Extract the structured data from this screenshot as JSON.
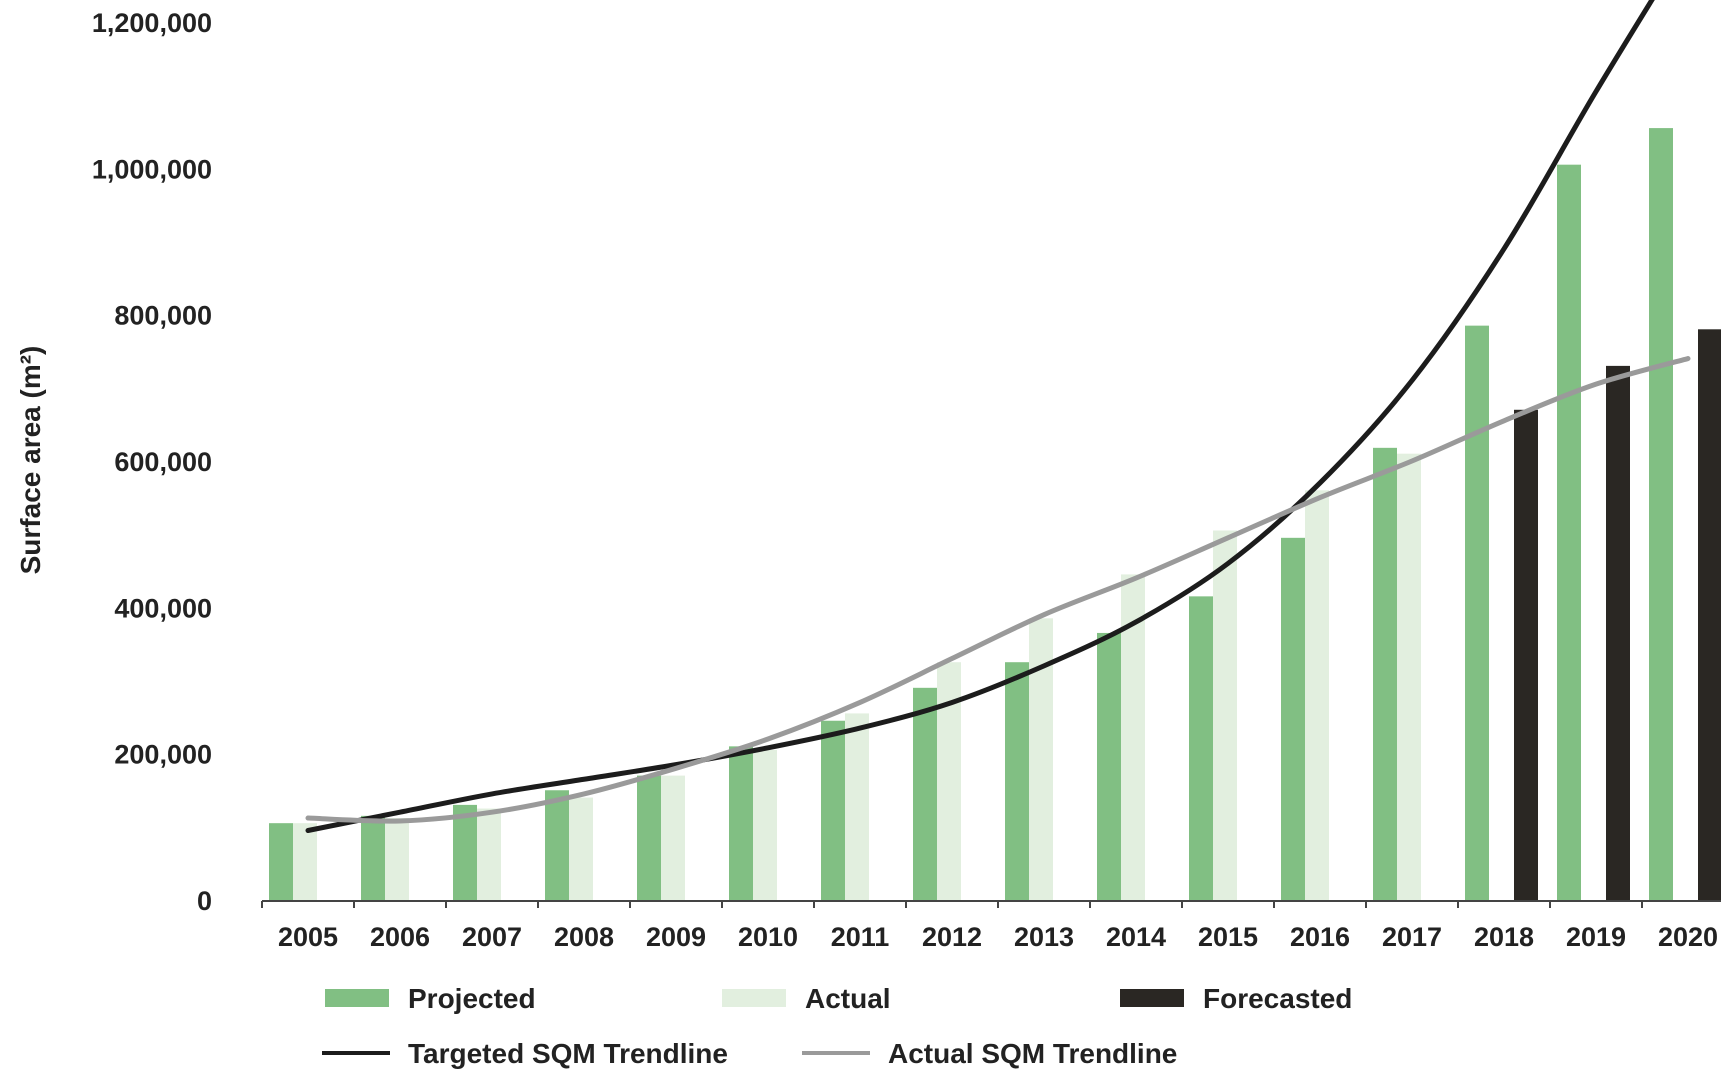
{
  "chart_data": {
    "type": "bar",
    "categories": [
      "2005",
      "2006",
      "2007",
      "2008",
      "2009",
      "2010",
      "2011",
      "2012",
      "2013",
      "2014",
      "2015",
      "2016",
      "2017",
      "2018",
      "2019",
      "2020"
    ],
    "series": [
      {
        "name": "Projected",
        "kind": "bar",
        "color": "#81bf83",
        "values": [
          105000,
          115000,
          130000,
          150000,
          170000,
          210000,
          245000,
          290000,
          325000,
          365000,
          415000,
          495000,
          618000,
          785000,
          1005000,
          1055000
        ]
      },
      {
        "name": "Actual",
        "kind": "bar",
        "color": "#e2efdf",
        "values": [
          105000,
          112000,
          125000,
          140000,
          170000,
          205000,
          255000,
          325000,
          385000,
          445000,
          505000,
          560000,
          610000,
          null,
          null,
          null
        ]
      },
      {
        "name": "Forecasted",
        "kind": "bar",
        "color": "#2a2723",
        "values": [
          null,
          null,
          null,
          null,
          null,
          null,
          null,
          null,
          null,
          null,
          null,
          null,
          null,
          670000,
          730000,
          780000
        ]
      },
      {
        "name": "Targeted SQM Trendline",
        "kind": "line",
        "color": "#1c1c1c",
        "values": [
          95000,
          120000,
          145000,
          165000,
          185000,
          208000,
          235000,
          270000,
          320000,
          380000,
          460000,
          570000,
          710000,
          890000,
          1105000,
          1310000
        ]
      },
      {
        "name": "Actual SQM Trendline",
        "kind": "line",
        "color": "#9a9a9a",
        "values": [
          112000,
          108000,
          120000,
          145000,
          180000,
          220000,
          270000,
          330000,
          390000,
          440000,
          495000,
          550000,
          600000,
          655000,
          705000,
          740000
        ]
      }
    ],
    "ylabel": "Surface area (m²)",
    "xlabel": "",
    "ylim": [
      0,
      1200000
    ],
    "yticks": [
      "0",
      "200,000",
      "400,000",
      "600,000",
      "800,000",
      "1,000,000",
      "1,200,000"
    ],
    "grid": false,
    "legend_position": "bottom"
  }
}
